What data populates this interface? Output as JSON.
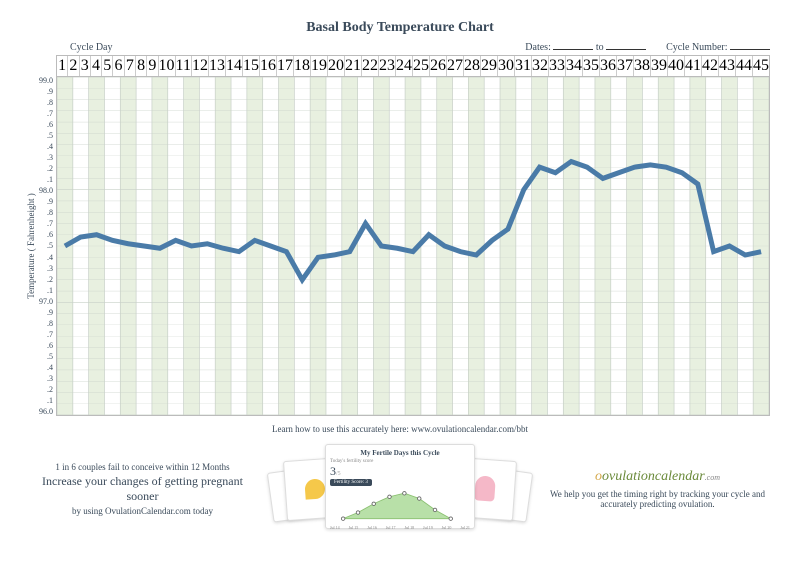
{
  "title": "Basal Body Temperature Chart",
  "header": {
    "cycle_day_label": "Cycle Day",
    "dates_label": "Dates:",
    "dates_to": "to",
    "cycle_number_label": "Cycle Number:"
  },
  "yaxis": {
    "label": "Temperature  ( Fahrenheight )",
    "min": 96.0,
    "max": 99.0,
    "ticks": [
      "99.0",
      ".9",
      ".8",
      ".7",
      ".6",
      ".5",
      ".4",
      ".3",
      ".2",
      ".1",
      "98.0",
      ".9",
      ".8",
      ".7",
      ".6",
      ".5",
      ".4",
      ".3",
      ".2",
      ".1",
      "97.0",
      ".9",
      ".8",
      ".7",
      ".6",
      ".5",
      ".4",
      ".3",
      ".2",
      ".1",
      "96.0"
    ]
  },
  "xaxis": {
    "count": 45
  },
  "chart": {
    "width_cells": 45,
    "height_cells": 30,
    "grid_band_color": "#e8f0e0",
    "grid_line_color": "#c8d0c8",
    "line_color": "#4a7ba8",
    "line_width": 1.5,
    "temps": [
      97.5,
      97.58,
      97.6,
      97.55,
      97.52,
      97.5,
      97.48,
      97.55,
      97.5,
      97.52,
      97.48,
      97.45,
      97.55,
      97.5,
      97.45,
      97.2,
      97.4,
      97.42,
      97.45,
      97.7,
      97.5,
      97.48,
      97.45,
      97.6,
      97.5,
      97.45,
      97.42,
      97.55,
      97.65,
      98.0,
      98.2,
      98.15,
      98.25,
      98.2,
      98.1,
      98.15,
      98.2,
      98.22,
      98.2,
      98.15,
      98.05,
      97.45,
      97.5,
      97.42,
      97.45
    ]
  },
  "footer_link": "Learn how to use this accurately here: www.ovulationcalendar.com/bbt",
  "promo": {
    "left_line1": "1 in 6 couples fail to conceive within 12 Months",
    "left_big": "Increase your changes of getting pregnant sooner",
    "left_line3": "by using OvulationCalendar.com today",
    "mini_title": "My Fertile Days this Cycle",
    "mini_sub": "Today's fertility score",
    "mini_score": "3",
    "mini_badge": "Fertility Score: 3",
    "mini_dates": [
      "Jul 14",
      "Jul 15",
      "Jul 16",
      "Jul 17",
      "Jul 18",
      "Jul 19",
      "Jul 20",
      "Jul 21"
    ],
    "logo_text": "ovulationcalendar",
    "logo_suffix": ".com",
    "right_text": "We help you get the timing right by tracking your cycle and accurately predicting ovulation."
  }
}
